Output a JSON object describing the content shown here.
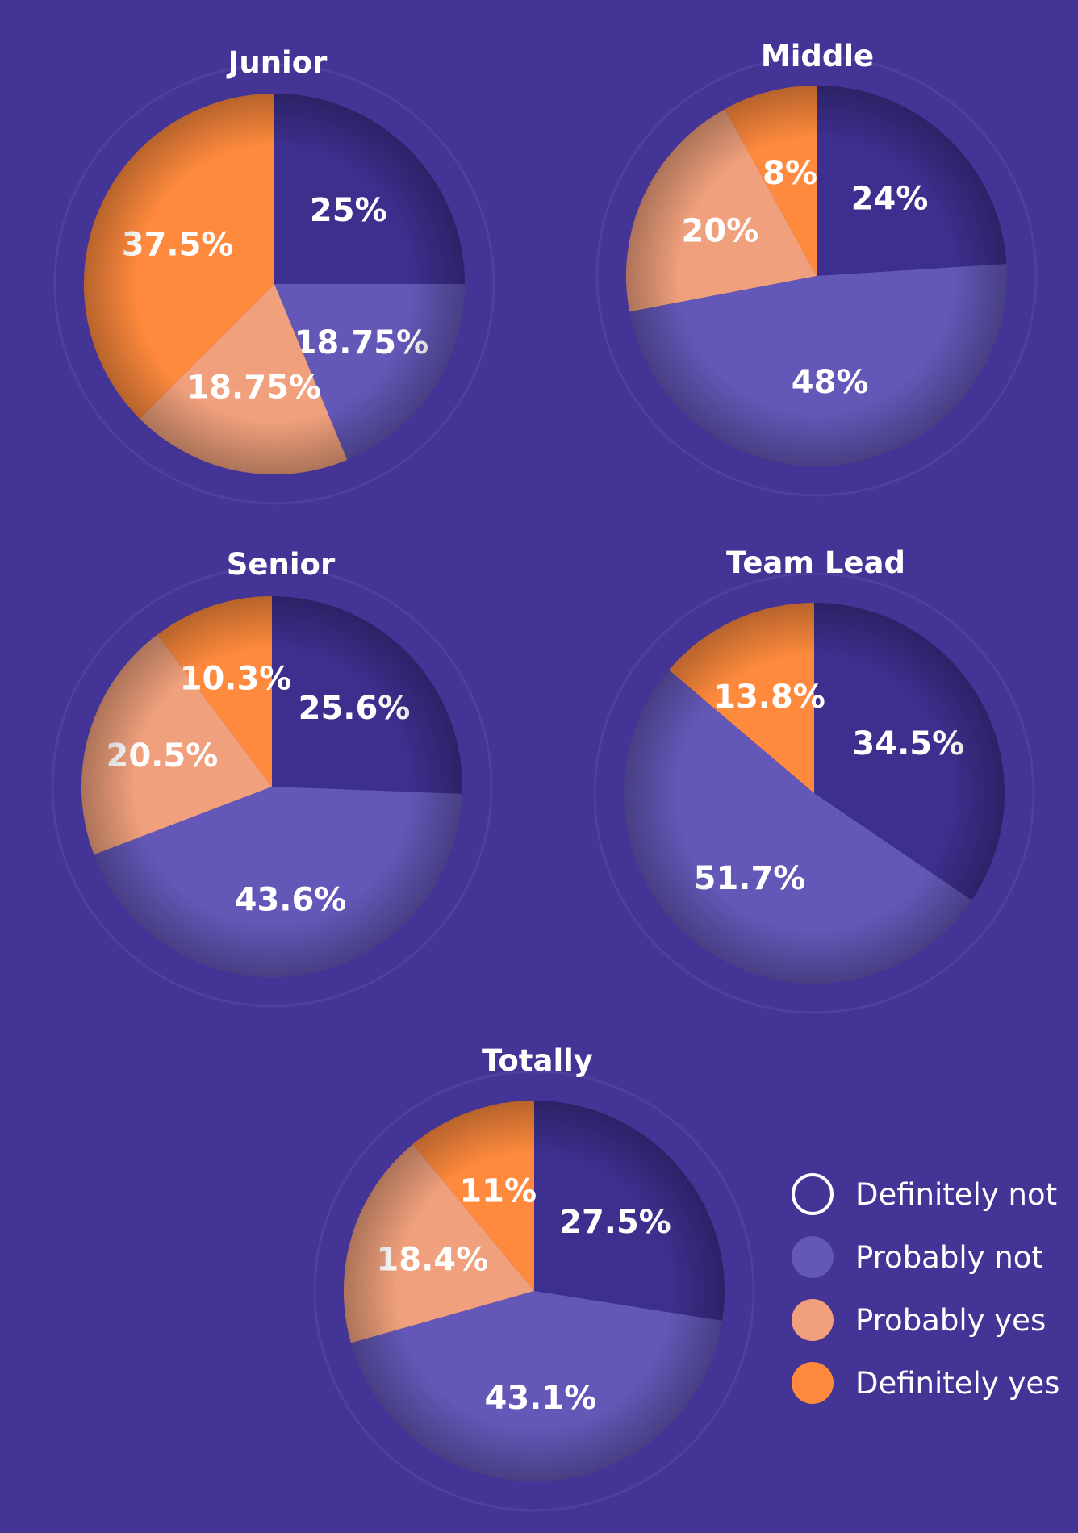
{
  "colors": {
    "background": "#433495",
    "definitely_not": "#3d2f8e",
    "probably_not": "#6357b7",
    "probably_yes": "#f0a07c",
    "definitely_yes": "#ff8a3d",
    "text": "#ffffff"
  },
  "legend": {
    "placement": "bottom-right",
    "items": [
      {
        "label": "Definitely not",
        "color": "#3d2f8e",
        "style": "outline",
        "icon": "ring-icon"
      },
      {
        "label": "Probably not",
        "color": "#6357b7",
        "style": "filled",
        "icon": "dot-icon"
      },
      {
        "label": "Probably yes",
        "color": "#f0a07c",
        "style": "filled",
        "icon": "dot-icon"
      },
      {
        "label": "Definitely yes",
        "color": "#ff8a3d",
        "style": "filled",
        "icon": "dot-icon"
      }
    ]
  },
  "chart_data": [
    {
      "type": "pie",
      "title": "Junior",
      "categories": [
        "Definitely not",
        "Probably not",
        "Probably yes",
        "Definitely yes"
      ],
      "values": [
        25,
        18.75,
        18.75,
        37.5
      ],
      "labels": [
        "25%",
        "18.75%",
        "18.75%",
        "37.5%"
      ]
    },
    {
      "type": "pie",
      "title": "Middle",
      "categories": [
        "Definitely not",
        "Probably not",
        "Probably yes",
        "Definitely yes"
      ],
      "values": [
        24,
        48,
        20,
        8
      ],
      "labels": [
        "24%",
        "48%",
        "20%",
        "8%"
      ]
    },
    {
      "type": "pie",
      "title": "Senior",
      "categories": [
        "Definitely not",
        "Probably not",
        "Probably yes",
        "Definitely yes"
      ],
      "values": [
        25.6,
        43.6,
        20.5,
        10.3
      ],
      "labels": [
        "25.6%",
        "43.6%",
        "20.5%",
        "10.3%"
      ]
    },
    {
      "type": "pie",
      "title": "Team Lead",
      "categories": [
        "Definitely not",
        "Probably not",
        "Probably yes",
        "Definitely yes"
      ],
      "values": [
        34.5,
        51.7,
        0,
        13.8
      ],
      "labels": [
        "34.5%",
        "51.7%",
        "",
        "13.8%"
      ]
    },
    {
      "type": "pie",
      "title": "Totally",
      "categories": [
        "Definitely not",
        "Probably not",
        "Probably yes",
        "Definitely yes"
      ],
      "values": [
        27.5,
        43.1,
        18.4,
        11
      ],
      "labels": [
        "27.5%",
        "43.1%",
        "18.4%",
        "11%"
      ]
    }
  ]
}
